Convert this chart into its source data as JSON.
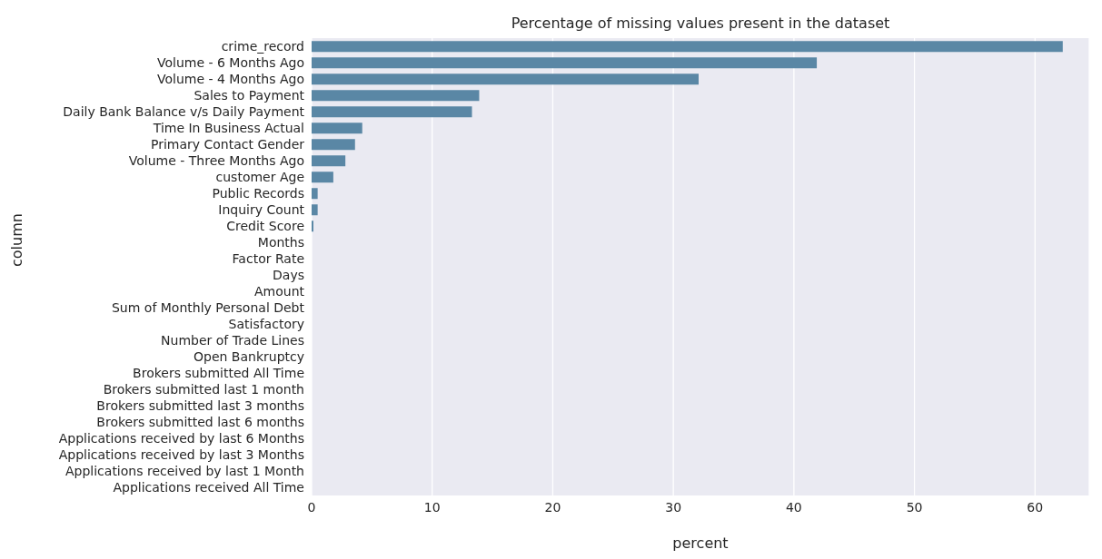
{
  "chart_data": {
    "type": "bar",
    "orientation": "horizontal",
    "title": "Percentage of missing values present in the dataset",
    "xlabel": "percent",
    "ylabel": "column",
    "categories": [
      "crime_record",
      "Volume - 6 Months Ago",
      "Volume - 4 Months Ago",
      "Sales to Payment",
      "Daily Bank Balance v/s Daily Payment",
      "Time In Business Actual",
      "Primary Contact Gender",
      "Volume - Three Months Ago",
      "customer Age",
      "Public Records",
      "Inquiry Count",
      "Credit Score",
      "Months",
      "Factor Rate",
      "Days",
      "Amount",
      "Sum of Monthly Personal Debt",
      "Satisfactory",
      "Number of Trade Lines",
      "Open Bankruptcy",
      "Brokers submitted All Time",
      "Brokers submitted last 1 month",
      "Brokers submitted last 3 months",
      "Brokers submitted last 6 months",
      "Applications received by last 6 Months",
      "Applications received by last 3 Months",
      "Applications received by last 1 Month",
      "Applications received All Time"
    ],
    "values": [
      62.3,
      41.9,
      32.1,
      13.9,
      13.3,
      4.2,
      3.6,
      2.8,
      1.8,
      0.5,
      0.5,
      0.15,
      0,
      0,
      0,
      0,
      0,
      0,
      0,
      0,
      0,
      0,
      0,
      0,
      0,
      0,
      0,
      0
    ],
    "color": "#5a87a5",
    "xlim": [
      0,
      64.5
    ],
    "xticks": [
      0,
      10,
      20,
      30,
      40,
      50,
      60
    ],
    "grid": "x"
  }
}
